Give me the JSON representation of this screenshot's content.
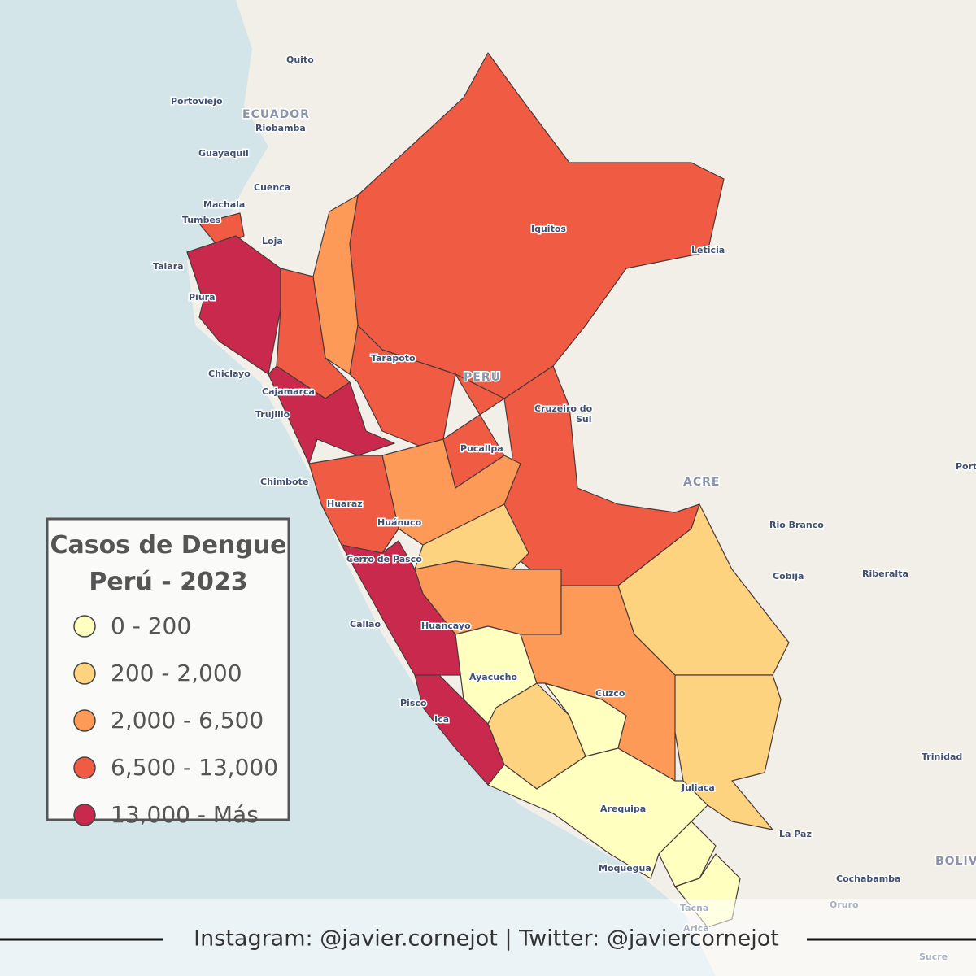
{
  "legend": {
    "title": [
      "Casos de Dengue",
      "Perú - 2023"
    ],
    "items": [
      {
        "label": "0 - 200",
        "color": "#ffffc0"
      },
      {
        "label": "200 - 2,000",
        "color": "#fed380"
      },
      {
        "label": "2,000 - 6,500",
        "color": "#fd9a58"
      },
      {
        "label": "6,500 - 13,000",
        "color": "#f05b43"
      },
      {
        "label": "13,000 - Más",
        "color": "#c8294c"
      }
    ]
  },
  "countries": [
    "ECUADOR",
    "PERU",
    "ACRE",
    "BOLIV"
  ],
  "places": [
    "Quito",
    "Portoviejo",
    "Riobamba",
    "Guayaquil",
    "Cuenca",
    "Machala",
    "Tumbes",
    "Loja",
    "Talara",
    "Piura",
    "Chiclayo",
    "Cajamarca",
    "Trujillo",
    "Chimbote",
    "Huaraz",
    "Tarapoto",
    "Iquitos",
    "Leticia",
    "Cruzeiro do",
    "Sul",
    "Pucallpa",
    "Huánuco",
    "Cerro de Pasco",
    "Callao",
    "Huancayo",
    "Ayacucho",
    "Pisco",
    "Ica",
    "Cuzco",
    "Rio Branco",
    "Cobija",
    "Riberalta",
    "Juliaca",
    "Arequipa",
    "La Paz",
    "Moquegua",
    "Tacna",
    "Arica",
    "Cochabamba",
    "Oruro",
    "Trinidad",
    "Sucre",
    "Port"
  ],
  "footer": "Instagram: @javier.cornejot | Twitter: @javiercornejot"
}
